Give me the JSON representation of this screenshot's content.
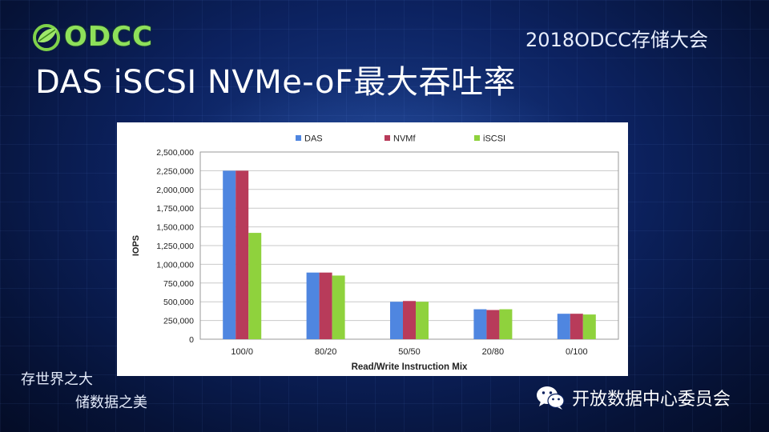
{
  "header": {
    "logo_text": "ODCC",
    "logo_icon": "leaf-globe-icon",
    "conference": "2018ODCC存储大会"
  },
  "title": "DAS iSCSI NVMe-oF最大吞吐率",
  "colors": {
    "das": "#4f86e0",
    "nvmf": "#b83b5a",
    "iscsi": "#8fd23d",
    "logo_green": "#8ee05a"
  },
  "chart_data": {
    "type": "bar",
    "title": "",
    "xlabel": "Read/Write Instruction Mix",
    "ylabel": "IOPS",
    "categories": [
      "100/0",
      "80/20",
      "50/50",
      "20/80",
      "0/100"
    ],
    "series": [
      {
        "name": "DAS",
        "color": "#4f86e0",
        "values": [
          2250000,
          890000,
          500000,
          400000,
          340000
        ]
      },
      {
        "name": "NVMf",
        "color": "#b83b5a",
        "values": [
          2250000,
          890000,
          510000,
          390000,
          340000
        ]
      },
      {
        "name": "iSCSI",
        "color": "#8fd23d",
        "values": [
          1420000,
          850000,
          500000,
          400000,
          330000
        ]
      }
    ],
    "ylim": [
      0,
      2500000
    ],
    "yticks": [
      "0",
      "250,000",
      "500,000",
      "750,000",
      "1,000,000",
      "1,250,000",
      "1,500,000",
      "1,750,000",
      "2,000,000",
      "2,250,000",
      "2,500,000"
    ],
    "grid": true,
    "legend": "top-center"
  },
  "footer": {
    "slogan_line1": "存世界之大",
    "slogan_line2": "储数据之美",
    "wechat_icon": "wechat-icon",
    "wechat_account": "开放数据中心委员会"
  }
}
